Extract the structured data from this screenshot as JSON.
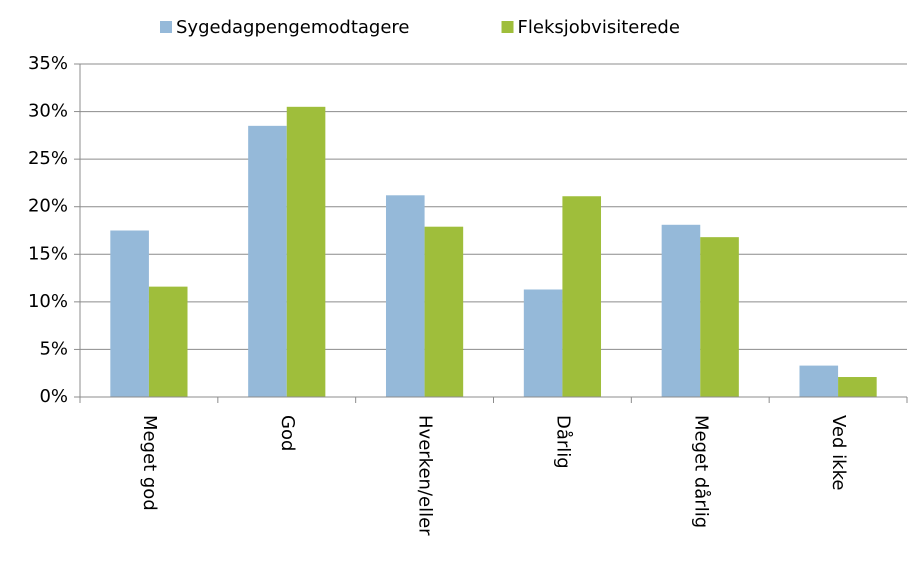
{
  "chart_data": {
    "type": "bar",
    "categories": [
      "Meget god",
      "God",
      "Hverken/eller",
      "Dårlig",
      "Meget dårlig",
      "Ved ikke"
    ],
    "series": [
      {
        "name": "Sygedagpengemodtagere",
        "color": "#95b9d9",
        "values": [
          17.5,
          28.5,
          21.2,
          11.3,
          18.1,
          3.3
        ]
      },
      {
        "name": "Fleksjobvisiterede",
        "color": "#9fbe3b",
        "values": [
          11.6,
          30.5,
          17.9,
          21.1,
          16.8,
          2.1
        ]
      }
    ],
    "ylim": [
      0,
      35
    ],
    "yticks": [
      {
        "value": 0,
        "label": "0%"
      },
      {
        "value": 5,
        "label": "5%"
      },
      {
        "value": 10,
        "label": "10%"
      },
      {
        "value": 15,
        "label": "15%"
      },
      {
        "value": 20,
        "label": "20%"
      },
      {
        "value": 25,
        "label": "25%"
      },
      {
        "value": 30,
        "label": "30%"
      },
      {
        "value": 35,
        "label": "35%"
      }
    ],
    "grid": true,
    "legend": "top"
  }
}
